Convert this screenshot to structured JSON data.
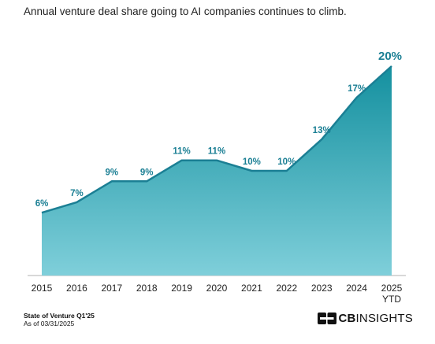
{
  "chart_data": {
    "type": "area",
    "title": "Annual venture deal share going to AI companies continues to climb.",
    "categories": [
      "2015",
      "2016",
      "2017",
      "2018",
      "2019",
      "2020",
      "2021",
      "2022",
      "2023",
      "2024",
      "2025"
    ],
    "category_sublabels": [
      "",
      "",
      "",
      "",
      "",
      "",
      "",
      "",
      "",
      "",
      "YTD"
    ],
    "series": [
      {
        "values": [
          6,
          7,
          9,
          9,
          11,
          11,
          10,
          10,
          13,
          17,
          20
        ]
      }
    ],
    "data_labels": [
      "6%",
      "7%",
      "9%",
      "9%",
      "11%",
      "11%",
      "10%",
      "10%",
      "13%",
      "17%",
      "20%"
    ],
    "ylim": [
      0,
      20
    ],
    "grid": false,
    "legend": "none",
    "colors": {
      "line": "#1b7f94",
      "fill_top": "#14909f",
      "fill_bottom": "#7fcfda",
      "label": "#1b7f94"
    }
  },
  "source": {
    "title": "State of Venture Q1'25",
    "date": "As of 03/31/2025"
  },
  "logo": {
    "icon": "cb-insights-logo-mark",
    "cb": "CB",
    "insights": "INSIGHTS"
  }
}
